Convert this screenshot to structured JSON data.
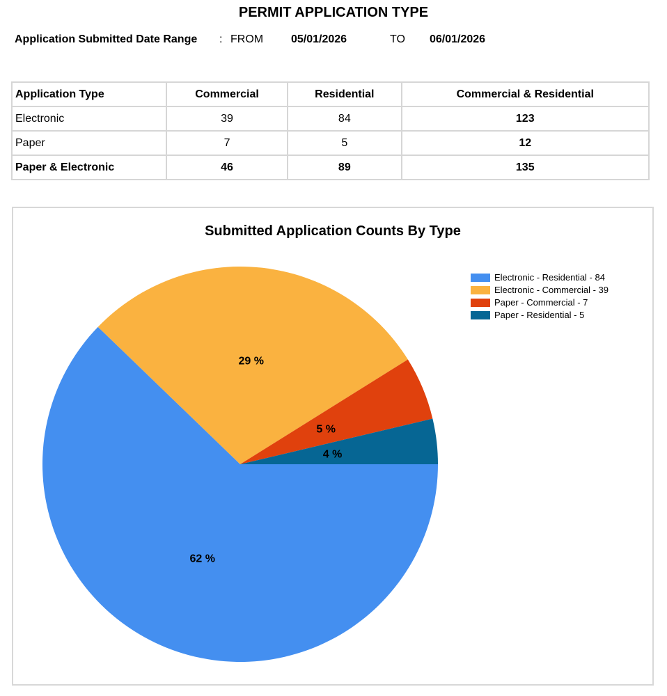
{
  "report": {
    "title": "PERMIT APPLICATION TYPE",
    "date_range_label": "Application Submitted Date Range",
    "from_label": "FROM",
    "from_date": "05/01/2026",
    "to_label": "TO",
    "to_date": "06/01/2026"
  },
  "table": {
    "headers": [
      "Application Type",
      "Commercial",
      "Residential",
      "Commercial & Residential"
    ],
    "rows": [
      [
        "Electronic",
        "39",
        "84",
        "123"
      ],
      [
        "Paper",
        "7",
        "5",
        "12"
      ],
      [
        "Paper & Electronic",
        "46",
        "89",
        "135"
      ]
    ]
  },
  "chart_data": {
    "type": "pie",
    "title": "Submitted Application Counts By Type",
    "legend_position": "top-right",
    "slices": [
      {
        "name": "Electronic - Residential - 84",
        "value": 84,
        "label": "62 %",
        "color": "#448ff0"
      },
      {
        "name": "Electronic - Commercial - 39",
        "value": 39,
        "label": "29 %",
        "color": "#fab240"
      },
      {
        "name": "Paper - Commercial - 7",
        "value": 7,
        "label": "5 %",
        "color": "#e0410d"
      },
      {
        "name": "Paper - Residential - 5",
        "value": 5,
        "label": "4 %",
        "color": "#066694"
      }
    ]
  }
}
